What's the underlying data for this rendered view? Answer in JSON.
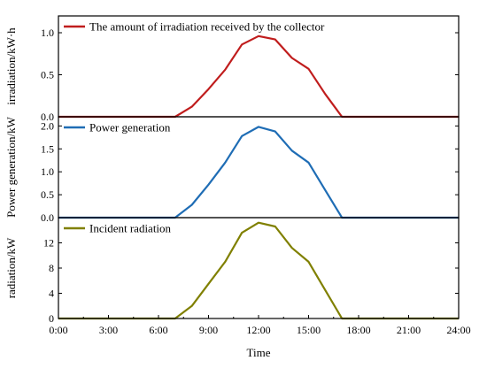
{
  "chart_data": {
    "type": "line",
    "x_axis": {
      "label": "Time",
      "ticks": [
        "0:00",
        "3:00",
        "6:00",
        "9:00",
        "12:00",
        "15:00",
        "18:00",
        "21:00",
        "24:00"
      ],
      "range": [
        0,
        24
      ]
    },
    "panels": [
      {
        "ylabel": "irradiation/kW·h",
        "ylim": [
          0,
          1.2
        ],
        "yticks": [
          "0.0",
          "0.5",
          "1.0"
        ],
        "ytick_values": [
          0,
          0.5,
          1.0
        ],
        "series": {
          "name": "The amount of irradiation received by the collector",
          "color": "#c01d1d",
          "x": [
            0,
            1,
            2,
            3,
            4,
            5,
            6,
            7,
            8,
            9,
            10,
            11,
            12,
            13,
            14,
            15,
            16,
            17,
            18,
            19,
            20,
            21,
            22,
            23,
            24
          ],
          "y": [
            0,
            0,
            0,
            0,
            0,
            0,
            0,
            0,
            0.12,
            0.33,
            0.56,
            0.86,
            0.96,
            0.92,
            0.7,
            0.57,
            0.27,
            0,
            0,
            0,
            0,
            0,
            0,
            0,
            0
          ]
        }
      },
      {
        "ylabel": "Power generation/kW",
        "ylim": [
          0,
          2.2
        ],
        "yticks": [
          "0.0",
          "0.5",
          "1.0",
          "1.5",
          "2.0"
        ],
        "ytick_values": [
          0,
          0.5,
          1.0,
          1.5,
          2.0
        ],
        "series": {
          "name": "Power generation",
          "color": "#1f6db5",
          "x": [
            0,
            1,
            2,
            3,
            4,
            5,
            6,
            7,
            8,
            9,
            10,
            11,
            12,
            13,
            14,
            15,
            16,
            17,
            18,
            19,
            20,
            21,
            22,
            23,
            24
          ],
          "y": [
            0,
            0,
            0,
            0,
            0,
            0,
            0,
            0,
            0.28,
            0.72,
            1.2,
            1.78,
            1.98,
            1.88,
            1.46,
            1.2,
            0.6,
            0,
            0,
            0,
            0,
            0,
            0,
            0,
            0
          ]
        }
      },
      {
        "ylabel": "radiation/kW",
        "ylim": [
          0,
          16
        ],
        "yticks": [
          "0",
          "4",
          "8",
          "12"
        ],
        "ytick_values": [
          0,
          4,
          8,
          12
        ],
        "series": {
          "name": "Incident radiation",
          "color": "#808000",
          "x": [
            0,
            1,
            2,
            3,
            4,
            5,
            6,
            7,
            8,
            9,
            10,
            11,
            12,
            13,
            14,
            15,
            16,
            17,
            18,
            19,
            20,
            21,
            22,
            23,
            24
          ],
          "y": [
            0,
            0,
            0,
            0,
            0,
            0,
            0,
            0,
            2.0,
            5.5,
            9.0,
            13.6,
            15.2,
            14.6,
            11.2,
            9.0,
            4.5,
            0,
            0,
            0,
            0,
            0,
            0,
            0,
            0
          ]
        }
      }
    ]
  }
}
